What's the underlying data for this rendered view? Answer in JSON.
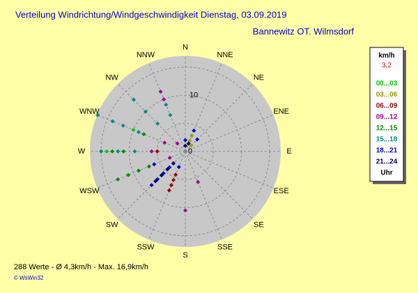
{
  "chart_data": {
    "type": "polar_scatter",
    "title": "Verteilung Windrichtung/Windgeschwindigkeit  Dienstag, 03.09.2019",
    "subtitle": "Bannewitz OT. Wilmsdorf",
    "categories": [
      "N",
      "NNE",
      "NE",
      "ENE",
      "E",
      "ESE",
      "SE",
      "SSE",
      "S",
      "SSW",
      "SW",
      "WSW",
      "W",
      "WNW",
      "NW",
      "NNW"
    ],
    "rlim": [
      0,
      17
    ],
    "rticks": [
      0,
      10
    ],
    "rgrid": [
      5,
      10,
      15
    ],
    "legend_title": "km/h",
    "current_speed": "3,2",
    "legend_footer": "Uhr",
    "footer": "288 Werte  -  Ø 4,3km/h  -  Max. 16,9km/h",
    "credit": "© WsWin32",
    "series": [
      {
        "name": "00...03",
        "color": "#00cc00",
        "directions": [
          270,
          270,
          292.5,
          247.5,
          270
        ],
        "values": [
          14,
          12,
          10,
          9,
          6
        ]
      },
      {
        "name": "03...06",
        "color": "#999900",
        "directions": [
          22.5,
          22.5,
          45,
          0
        ],
        "values": [
          3,
          2,
          1.5,
          1
        ]
      },
      {
        "name": "06...09",
        "color": "#990000",
        "directions": [
          202.5,
          202.5,
          202.5,
          202.5,
          225,
          270
        ],
        "values": [
          7.5,
          6.5,
          5.5,
          4.5,
          3,
          5
        ]
      },
      {
        "name": "09...12",
        "color": "#990099",
        "directions": [
          337.5,
          337.5,
          157.5,
          180,
          270,
          292.5,
          247.5,
          315
        ],
        "values": [
          11.5,
          10,
          5.9,
          10.5,
          6,
          4,
          3,
          2
        ]
      },
      {
        "name": "12...15",
        "color": "#008800",
        "directions": [
          247.5,
          247.5,
          247.5,
          247.5,
          270,
          270,
          270,
          292.5,
          225
        ],
        "values": [
          13,
          11,
          9,
          7,
          15,
          13,
          11,
          8,
          6
        ]
      },
      {
        "name": "15...18",
        "color": "#008888",
        "directions": [
          292.5,
          292.5,
          292.5,
          292.5,
          315,
          315,
          315,
          270,
          270,
          270,
          337.5,
          337.5
        ],
        "values": [
          16.9,
          14,
          12,
          9,
          13,
          10,
          7,
          15,
          12,
          9,
          9,
          7
        ]
      },
      {
        "name": "18...21",
        "color": "#0000cc",
        "directions": [
          225,
          225,
          225,
          225,
          202.5,
          22.5,
          45,
          0,
          247.5
        ],
        "values": [
          8.5,
          7,
          5.5,
          4,
          3,
          4,
          3,
          2,
          6
        ]
      },
      {
        "name": "21...24",
        "color": "#000066",
        "directions": [
          225,
          225,
          225,
          225,
          22.5,
          0
        ],
        "values": [
          7.5,
          6,
          4.5,
          3,
          1.5,
          1
        ]
      }
    ]
  }
}
